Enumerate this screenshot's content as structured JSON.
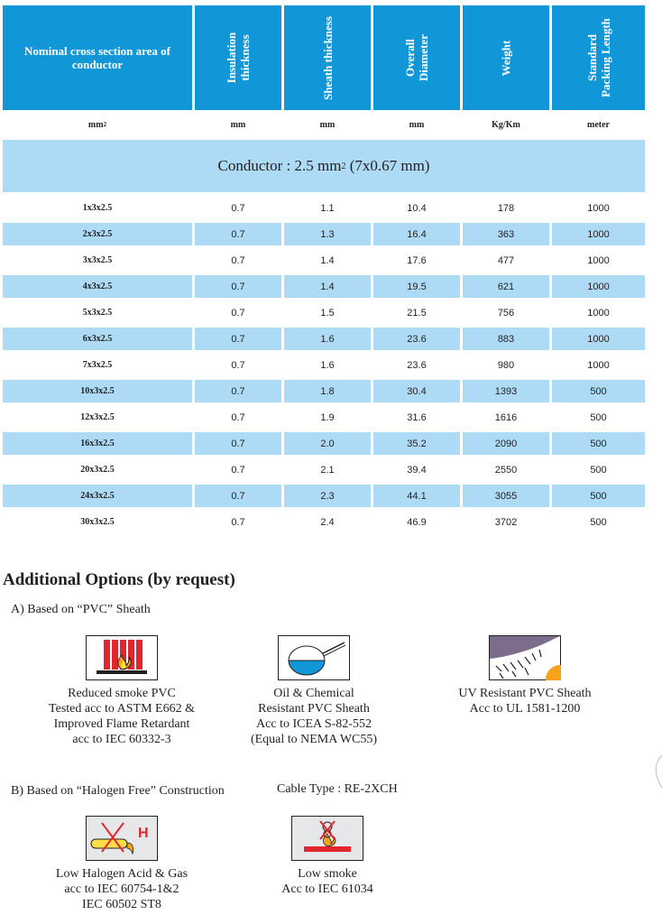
{
  "table": {
    "headers": [
      "Nominal cross section area of conductor",
      "Insulation thickness",
      "Sheath thickness",
      "Overall Diameter",
      "Weight",
      "Standard Packing Length"
    ],
    "header_lines": [
      [
        "Nominal cross section area of",
        "conductor"
      ],
      [
        "Insulation",
        "thickness"
      ],
      [
        "Sheath thickness"
      ],
      [
        "Overall",
        "Diameter"
      ],
      [
        "Weight"
      ],
      [
        "Standard",
        "Packing Length"
      ]
    ],
    "units": [
      "mm",
      "mm",
      "mm",
      "mm",
      "Kg/Km",
      "meter"
    ],
    "unit_sup": "2",
    "band": {
      "text": "Conductor : 2.5 mm",
      "sup": "2",
      "suffix": " (7x0.67 mm)"
    },
    "rows": [
      [
        "1x3x2.5",
        "0.7",
        "1.1",
        "10.4",
        "178",
        "1000"
      ],
      [
        "2x3x2.5",
        "0.7",
        "1.3",
        "16.4",
        "363",
        "1000"
      ],
      [
        "3x3x2.5",
        "0.7",
        "1.4",
        "17.6",
        "477",
        "1000"
      ],
      [
        "4x3x2.5",
        "0.7",
        "1.4",
        "19.5",
        "621",
        "1000"
      ],
      [
        "5x3x2.5",
        "0.7",
        "1.5",
        "21.5",
        "756",
        "1000"
      ],
      [
        "6x3x2.5",
        "0.7",
        "1.6",
        "23.6",
        "883",
        "1000"
      ],
      [
        "7x3x2.5",
        "0.7",
        "1.6",
        "23.6",
        "980",
        "1000"
      ],
      [
        "10x3x2.5",
        "0.7",
        "1.8",
        "30.4",
        "1393",
        "500"
      ],
      [
        "12x3x2.5",
        "0.7",
        "1.9",
        "31.6",
        "1616",
        "500"
      ],
      [
        "16x3x2.5",
        "0.7",
        "2.0",
        "35.2",
        "2090",
        "500"
      ],
      [
        "20x3x2.5",
        "0.7",
        "2.1",
        "39.4",
        "2550",
        "500"
      ],
      [
        "24x3x2.5",
        "0.7",
        "2.3",
        "44.1",
        "3055",
        "500"
      ],
      [
        "30x3x2.5",
        "0.7",
        "2.4",
        "46.9",
        "3702",
        "500"
      ]
    ]
  },
  "options": {
    "title": "Additional Options (by request)",
    "section_a": "A) Based on “PVC” Sheath",
    "section_b": "B) Based on “Halogen Free” Construction",
    "cable_type": "Cable Type : RE-2XCH",
    "items_a": [
      {
        "icon": "flame-retardant-icon",
        "lines": [
          "Reduced smoke PVC",
          "Tested acc to ASTM E662 &",
          "Improved Flame Retardant",
          "acc to IEC 60332-3"
        ]
      },
      {
        "icon": "oil-resistant-icon",
        "lines": [
          "Oil & Chemical",
          "Resistant PVC Sheath",
          "Acc to ICEA S-82-552",
          "(Equal to NEMA WC55)"
        ]
      },
      {
        "icon": "uv-resistant-icon",
        "lines": [
          "UV Resistant PVC Sheath",
          "Acc to UL 1581-1200"
        ]
      }
    ],
    "items_b": [
      {
        "icon": "low-halogen-icon",
        "icon_letter": "H",
        "lines": [
          "Low Halogen Acid & Gas",
          "acc to IEC 60754-1&2",
          "IEC 60502 ST8"
        ]
      },
      {
        "icon": "low-smoke-icon",
        "lines": [
          "Low smoke",
          "Acc to IEC 61034"
        ]
      }
    ]
  },
  "colors": {
    "header_blue": "#1197d8",
    "light_blue": "#addaf5"
  }
}
